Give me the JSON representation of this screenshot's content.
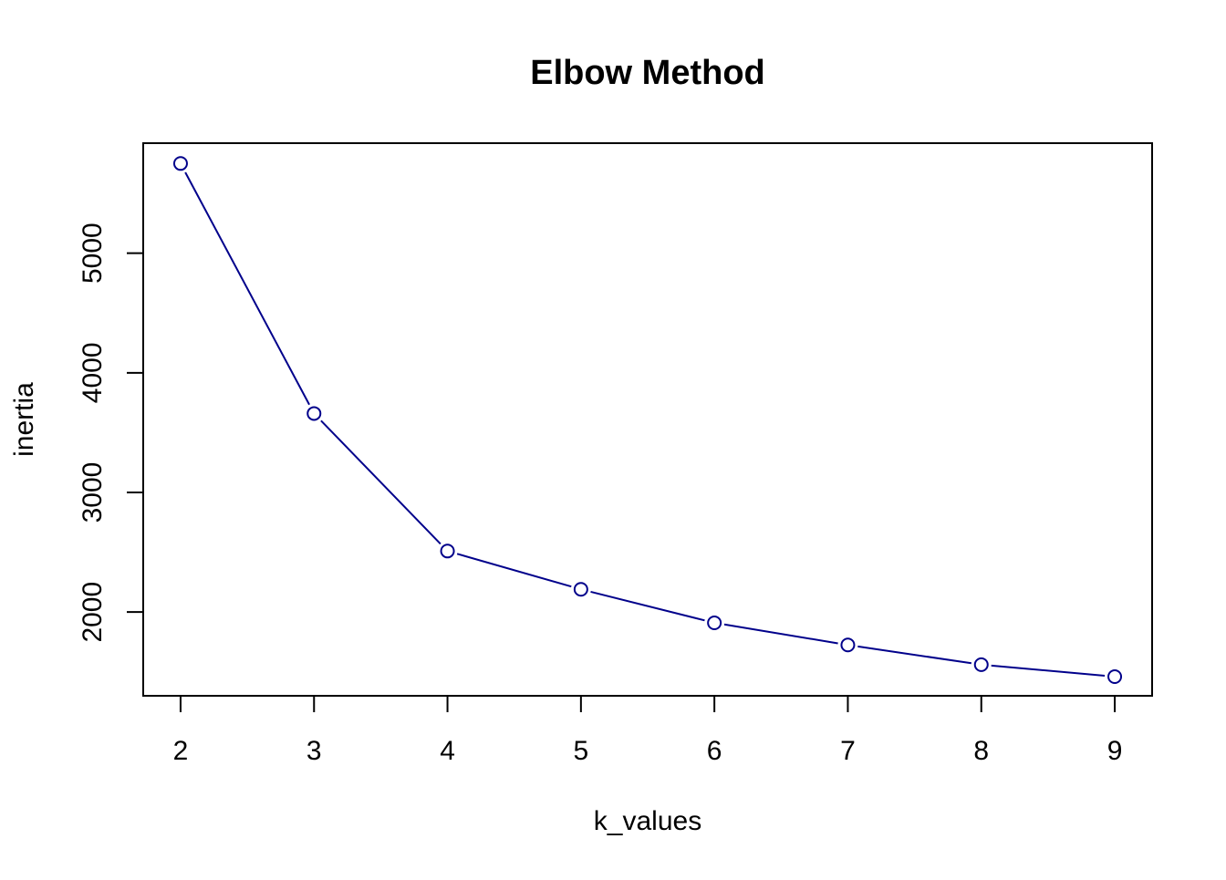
{
  "chart_data": {
    "type": "line",
    "title": "Elbow Method",
    "xlabel": "k_values",
    "ylabel": "inertia",
    "x": [
      2,
      3,
      4,
      5,
      6,
      7,
      8,
      9
    ],
    "series": [
      {
        "values": [
          5750,
          3660,
          2510,
          2190,
          1910,
          1725,
          1560,
          1460
        ],
        "color": "#00008B",
        "marker": "open-circle"
      }
    ],
    "xticks": [
      "2",
      "3",
      "4",
      "5",
      "6",
      "7",
      "8",
      "9"
    ],
    "yticks": [
      "2000",
      "3000",
      "4000",
      "5000"
    ],
    "xlim": [
      1.72,
      9.28
    ],
    "ylim": [
      1300,
      5920
    ],
    "grid": false,
    "legend": "none"
  }
}
